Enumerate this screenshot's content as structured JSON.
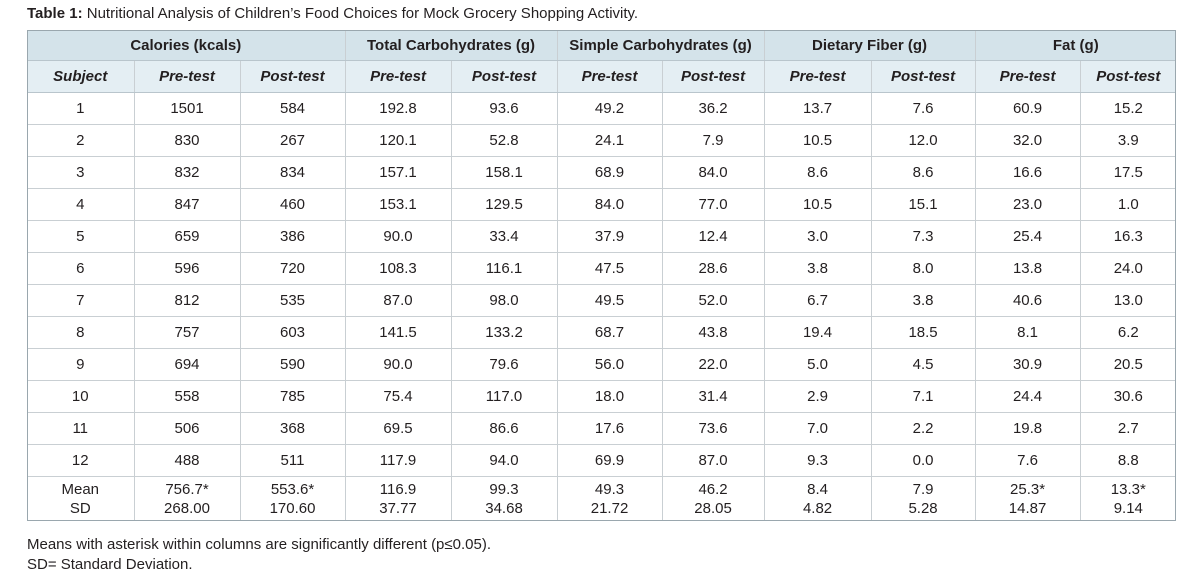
{
  "caption": {
    "label": "Table 1:",
    "text": " Nutritional Analysis of Children’s Food Choices for Mock Grocery Shopping Activity."
  },
  "table": {
    "groups": [
      "Calories  (kcals)",
      "Total Carbohydrates  (g)",
      "Simple Carbohydrates (g)",
      "Dietary Fiber (g)",
      "Fat (g)"
    ],
    "subject_header": "Subject",
    "pre_label": "Pre-test",
    "post_label": "Post-test",
    "rows": [
      [
        "1",
        "1501",
        "584",
        "192.8",
        "93.6",
        "49.2",
        "36.2",
        "13.7",
        "7.6",
        "60.9",
        "15.2"
      ],
      [
        "2",
        "830",
        "267",
        "120.1",
        "52.8",
        "24.1",
        "7.9",
        "10.5",
        "12.0",
        "32.0",
        "3.9"
      ],
      [
        "3",
        "832",
        "834",
        "157.1",
        "158.1",
        "68.9",
        "84.0",
        "8.6",
        "8.6",
        "16.6",
        "17.5"
      ],
      [
        "4",
        "847",
        "460",
        "153.1",
        "129.5",
        "84.0",
        "77.0",
        "10.5",
        "15.1",
        "23.0",
        "1.0"
      ],
      [
        "5",
        "659",
        "386",
        "90.0",
        "33.4",
        "37.9",
        "12.4",
        "3.0",
        "7.3",
        "25.4",
        "16.3"
      ],
      [
        "6",
        "596",
        "720",
        "108.3",
        "116.1",
        "47.5",
        "28.6",
        "3.8",
        "8.0",
        "13.8",
        "24.0"
      ],
      [
        "7",
        "812",
        "535",
        "87.0",
        "98.0",
        "49.5",
        "52.0",
        "6.7",
        "3.8",
        "40.6",
        "13.0"
      ],
      [
        "8",
        "757",
        "603",
        "141.5",
        "133.2",
        "68.7",
        "43.8",
        "19.4",
        "18.5",
        "8.1",
        "6.2"
      ],
      [
        "9",
        "694",
        "590",
        "90.0",
        "79.6",
        "56.0",
        "22.0",
        "5.0",
        "4.5",
        "30.9",
        "20.5"
      ],
      [
        "10",
        "558",
        "785",
        "75.4",
        "117.0",
        "18.0",
        "31.4",
        "2.9",
        "7.1",
        "24.4",
        "30.6"
      ],
      [
        "11",
        "506",
        "368",
        "69.5",
        "86.6",
        "17.6",
        "73.6",
        "7.0",
        "2.2",
        "19.8",
        "2.7"
      ],
      [
        "12",
        "488",
        "511",
        "117.9",
        "94.0",
        "69.9",
        "87.0",
        "9.3",
        "0.0",
        "7.6",
        "8.8"
      ]
    ],
    "summary_labels": [
      "Mean",
      "SD"
    ],
    "mean": [
      "756.7*",
      "553.6*",
      "116.9",
      "99.3",
      "49.3",
      "46.2",
      "8.4",
      "7.9",
      "25.3*",
      "13.3*"
    ],
    "sd": [
      "268.00",
      "170.60",
      "37.77",
      "34.68",
      "21.72",
      "28.05",
      "4.82",
      "5.28",
      "14.87",
      "9.14"
    ]
  },
  "notes": [
    "Means with asterisk within columns are significantly different (p≤0.05).",
    "SD= Standard Deviation."
  ],
  "colors": {
    "header_group_bg": "#d4e3ea",
    "header_sub_bg": "#e4eef3",
    "grid_line": "#c9cfd3",
    "text": "#231f20"
  }
}
